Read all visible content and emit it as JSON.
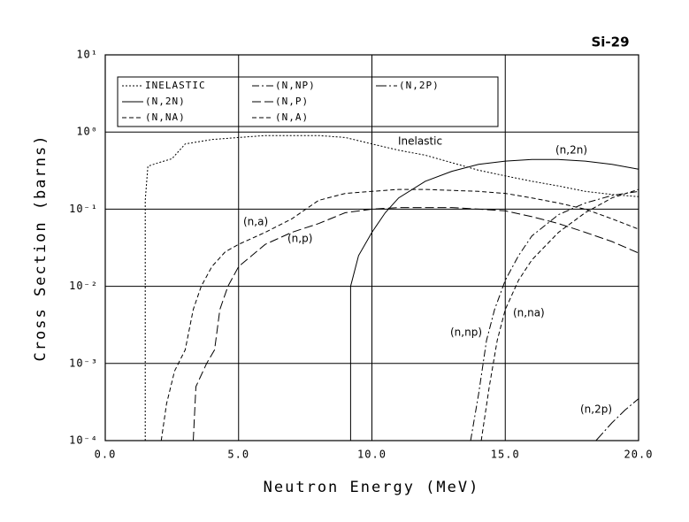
{
  "chart_data": {
    "type": "line",
    "title": "Si-29",
    "xlabel": "Neutron Energy (MeV)",
    "ylabel": "Cross Section (barns)",
    "xlim": [
      0,
      20
    ],
    "ylim": [
      0.0001,
      10
    ],
    "yscale": "log",
    "grid": true,
    "xticks": [
      {
        "value": 0,
        "label": "0.0"
      },
      {
        "value": 5,
        "label": "5.0"
      },
      {
        "value": 10,
        "label": "10.0"
      },
      {
        "value": 15,
        "label": "15.0"
      },
      {
        "value": 20,
        "label": "20.0"
      }
    ],
    "yticks": [
      {
        "value": 0.0001,
        "label": "10⁻⁴"
      },
      {
        "value": 0.001,
        "label": "10⁻³"
      },
      {
        "value": 0.01,
        "label": "10⁻²"
      },
      {
        "value": 0.1,
        "label": "10⁻¹"
      },
      {
        "value": 1,
        "label": "10⁰"
      },
      {
        "value": 10,
        "label": "10¹"
      }
    ],
    "series": [
      {
        "name": "INELASTIC",
        "color": "#000000",
        "dash": "2,2",
        "x": [
          1.5,
          1.5,
          1.6,
          2.0,
          2.5,
          3.0,
          4,
          5,
          6,
          7,
          8,
          9,
          10,
          11,
          12,
          13,
          14,
          15,
          16,
          17,
          18,
          19,
          20
        ],
        "values": [
          0.0001,
          0.13,
          0.36,
          0.4,
          0.45,
          0.7,
          0.8,
          0.85,
          0.9,
          0.9,
          0.9,
          0.85,
          0.7,
          0.58,
          0.5,
          0.4,
          0.32,
          0.27,
          0.23,
          0.2,
          0.17,
          0.155,
          0.145
        ]
      },
      {
        "name": "(N,NP)",
        "color": "#000000",
        "dash": "8,3,2,3",
        "x": [
          13.7,
          14,
          14.3,
          14.6,
          15,
          15.5,
          16,
          17,
          18,
          19,
          20
        ],
        "values": [
          0.0001,
          0.0004,
          0.002,
          0.005,
          0.012,
          0.025,
          0.045,
          0.085,
          0.12,
          0.15,
          0.17
        ]
      },
      {
        "name": "(N,2P)",
        "color": "#000000",
        "dash": "12,3,2,3",
        "x": [
          18.4,
          19,
          19.5,
          20
        ],
        "values": [
          0.0001,
          0.00017,
          0.00025,
          0.00035
        ]
      },
      {
        "name": "(N,2N)",
        "color": "#000000",
        "dash": "none",
        "x": [
          9.2,
          9.2,
          9.5,
          10,
          10.5,
          11,
          12,
          13,
          14,
          15,
          16,
          17,
          18,
          19,
          20
        ],
        "values": [
          0.0001,
          0.01,
          0.025,
          0.05,
          0.09,
          0.14,
          0.23,
          0.31,
          0.38,
          0.42,
          0.44,
          0.44,
          0.42,
          0.38,
          0.33
        ]
      },
      {
        "name": "(N,P)",
        "color": "#000000",
        "dash": "10,4",
        "x": [
          3.3,
          3.4,
          3.8,
          4.1,
          4.3,
          4.6,
          5,
          6,
          7,
          8,
          9,
          10,
          11,
          12,
          13,
          14,
          15,
          16,
          17,
          18,
          19,
          20
        ],
        "values": [
          0.0001,
          0.0005,
          0.001,
          0.0015,
          0.005,
          0.01,
          0.018,
          0.035,
          0.05,
          0.065,
          0.09,
          0.1,
          0.105,
          0.105,
          0.105,
          0.1,
          0.095,
          0.08,
          0.065,
          0.05,
          0.038,
          0.027
        ]
      },
      {
        "name": "(N,NA)",
        "color": "#000000",
        "dash": "5,3",
        "x": [
          14.1,
          14.4,
          14.7,
          15,
          15.5,
          16,
          17,
          18,
          19,
          20
        ],
        "values": [
          0.0001,
          0.0005,
          0.002,
          0.005,
          0.012,
          0.022,
          0.05,
          0.09,
          0.14,
          0.18
        ]
      },
      {
        "name": "(N,A)",
        "color": "#000000",
        "dash": "5,3",
        "x": [
          2.1,
          2.3,
          2.6,
          3,
          3.3,
          3.6,
          4,
          4.5,
          5,
          6,
          7,
          8,
          9,
          10,
          11,
          12,
          13,
          14,
          15,
          16,
          17,
          18,
          19,
          20
        ],
        "values": [
          0.0001,
          0.0003,
          0.0008,
          0.0015,
          0.005,
          0.01,
          0.018,
          0.028,
          0.035,
          0.05,
          0.075,
          0.13,
          0.16,
          0.17,
          0.18,
          0.18,
          0.175,
          0.17,
          0.16,
          0.14,
          0.12,
          0.1,
          0.075,
          0.055
        ]
      }
    ],
    "annotations": [
      "Inelastic",
      "(n,2n)",
      "(n,a)",
      "(n,p)",
      "(n,np)",
      "(n,na)",
      "(n,2p)"
    ]
  }
}
